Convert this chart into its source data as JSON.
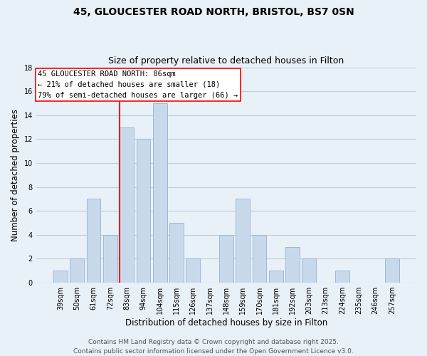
{
  "title_line1": "45, GLOUCESTER ROAD NORTH, BRISTOL, BS7 0SN",
  "title_line2": "Size of property relative to detached houses in Filton",
  "xlabel": "Distribution of detached houses by size in Filton",
  "ylabel": "Number of detached properties",
  "categories": [
    "39sqm",
    "50sqm",
    "61sqm",
    "72sqm",
    "83sqm",
    "94sqm",
    "104sqm",
    "115sqm",
    "126sqm",
    "137sqm",
    "148sqm",
    "159sqm",
    "170sqm",
    "181sqm",
    "192sqm",
    "203sqm",
    "213sqm",
    "224sqm",
    "235sqm",
    "246sqm",
    "257sqm"
  ],
  "values": [
    1,
    2,
    7,
    4,
    13,
    12,
    15,
    5,
    2,
    0,
    4,
    7,
    4,
    1,
    3,
    2,
    0,
    1,
    0,
    0,
    2
  ],
  "bar_color": "#c9d9ec",
  "bar_edgecolor": "#a0b8d8",
  "grid_color": "#c0cedc",
  "background_color": "#e8f0f8",
  "annotation_line1": "45 GLOUCESTER ROAD NORTH: 86sqm",
  "annotation_line2": "← 21% of detached houses are smaller (18)",
  "annotation_line3": "79% of semi-detached houses are larger (66) →",
  "red_line_category": "83sqm",
  "ylim": [
    0,
    18
  ],
  "yticks": [
    0,
    2,
    4,
    6,
    8,
    10,
    12,
    14,
    16,
    18
  ],
  "footer_line1": "Contains HM Land Registry data © Crown copyright and database right 2025.",
  "footer_line2": "Contains public sector information licensed under the Open Government Licence v3.0.",
  "title_fontsize": 10,
  "subtitle_fontsize": 9,
  "axis_label_fontsize": 8.5,
  "tick_fontsize": 7,
  "annotation_fontsize": 7.5,
  "footer_fontsize": 6.5
}
